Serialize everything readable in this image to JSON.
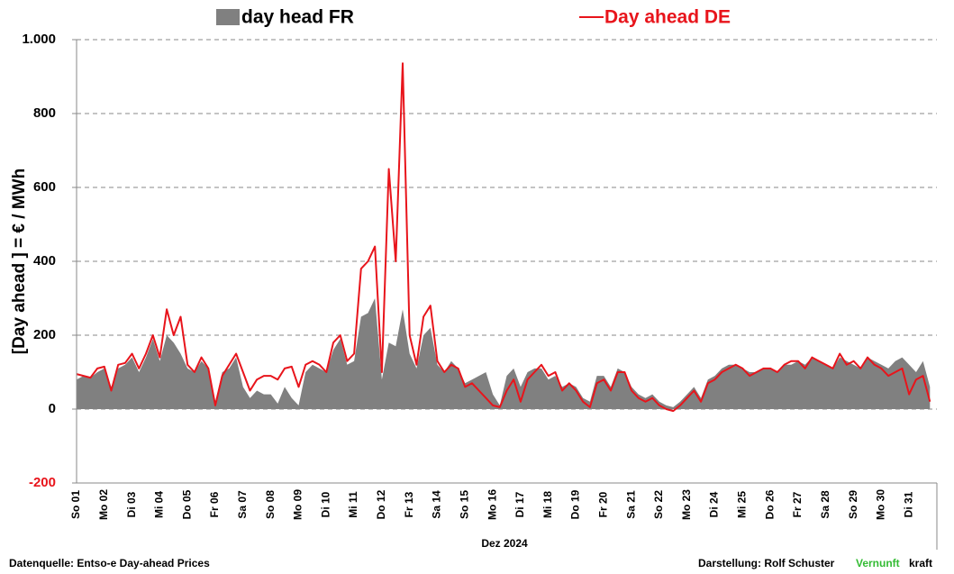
{
  "chart_data": {
    "type": "area_line",
    "y_label": "[Day ahead ]  = € / MWh",
    "x_label": "Dez 2024",
    "categories": [
      "So 01",
      "Mo 02",
      "Di 03",
      "Mi 04",
      "Do 05",
      "Fr 06",
      "Sa 07",
      "So 08",
      "Mo 09",
      "Di 10",
      "Mi 11",
      "Do 12",
      "Fr 13",
      "Sa 14",
      "So 15",
      "Mo 16",
      "Di 17",
      "Mi 18",
      "Do 19",
      "Fr 20",
      "Sa 21",
      "So 22",
      "Mo 23",
      "Di 24",
      "Mi 25",
      "Do 26",
      "Fr 27",
      "Sa 28",
      "So 29",
      "Mo 30",
      "Di 31"
    ],
    "series": [
      {
        "name": "day head FR",
        "kind": "area",
        "color": "#808080",
        "values": [
          [
            80,
            90,
            85,
            100
          ],
          [
            110,
            60,
            110,
            120
          ],
          [
            140,
            100,
            140,
            190
          ],
          [
            130,
            200,
            180,
            150
          ],
          [
            110,
            100,
            130,
            110
          ],
          [
            20,
            100,
            110,
            140
          ],
          [
            60,
            30,
            50,
            40
          ],
          [
            40,
            15,
            60,
            30
          ],
          [
            10,
            100,
            120,
            110
          ],
          [
            100,
            160,
            190,
            120
          ],
          [
            130,
            250,
            260,
            300
          ],
          [
            80,
            180,
            170,
            270
          ],
          [
            150,
            110,
            200,
            220
          ],
          [
            120,
            100,
            130,
            110
          ],
          [
            70,
            80,
            90,
            100
          ],
          [
            40,
            10,
            90,
            110
          ],
          [
            60,
            100,
            110,
            110
          ],
          [
            80,
            90,
            60,
            70
          ],
          [
            60,
            30,
            20,
            90
          ],
          [
            90,
            60,
            110,
            100
          ],
          [
            60,
            40,
            30,
            40
          ],
          [
            20,
            10,
            5,
            20
          ],
          [
            40,
            60,
            30,
            80
          ],
          [
            90,
            110,
            120,
            120
          ],
          [
            110,
            100,
            100,
            110
          ],
          [
            110,
            100,
            120,
            120
          ],
          [
            130,
            120,
            140,
            130
          ],
          [
            120,
            110,
            140,
            130
          ],
          [
            120,
            110,
            140,
            130
          ],
          [
            120,
            110,
            130,
            140
          ],
          [
            120,
            100,
            130,
            60
          ]
        ]
      },
      {
        "name": "Day ahead DE",
        "kind": "line",
        "color": "#e8141b",
        "values": [
          [
            95,
            90,
            85,
            110
          ],
          [
            115,
            50,
            120,
            125
          ],
          [
            150,
            110,
            150,
            200
          ],
          [
            140,
            270,
            200,
            250
          ],
          [
            120,
            100,
            140,
            110
          ],
          [
            10,
            90,
            120,
            150
          ],
          [
            100,
            50,
            80,
            90
          ],
          [
            90,
            80,
            110,
            115
          ],
          [
            60,
            120,
            130,
            120
          ],
          [
            100,
            180,
            200,
            130
          ],
          [
            150,
            380,
            400,
            440
          ],
          [
            100,
            650,
            400,
            936
          ],
          [
            200,
            120,
            250,
            280
          ],
          [
            130,
            100,
            120,
            110
          ],
          [
            60,
            70,
            50,
            30
          ],
          [
            10,
            5,
            50,
            80
          ],
          [
            20,
            80,
            100,
            120
          ],
          [
            90,
            100,
            50,
            70
          ],
          [
            50,
            20,
            5,
            70
          ],
          [
            80,
            50,
            100,
            100
          ],
          [
            50,
            30,
            20,
            30
          ],
          [
            10,
            0,
            -5,
            10
          ],
          [
            30,
            50,
            20,
            70
          ],
          [
            80,
            100,
            110,
            120
          ],
          [
            110,
            90,
            100,
            110
          ],
          [
            110,
            100,
            120,
            130
          ],
          [
            130,
            110,
            140,
            130
          ],
          [
            120,
            110,
            150,
            120
          ],
          [
            130,
            110,
            140,
            120
          ],
          [
            110,
            90,
            100,
            110
          ],
          [
            40,
            80,
            90,
            20
          ]
        ]
      }
    ],
    "ylim": [
      -200,
      1000
    ],
    "yticks": [
      {
        "value": -200,
        "label": "-200",
        "color": "#e8141b"
      },
      0,
      200,
      400,
      600,
      800,
      {
        "value": 1000,
        "label": "1.000"
      }
    ],
    "grid": true,
    "legend": "top",
    "footer_left": "Datenquelle: Entso-e  Day-ahead Prices",
    "footer_right": "Darstellung:  Rolf Schuster",
    "footer_brand_1": "Vernunft",
    "footer_brand_2": "kraft"
  }
}
